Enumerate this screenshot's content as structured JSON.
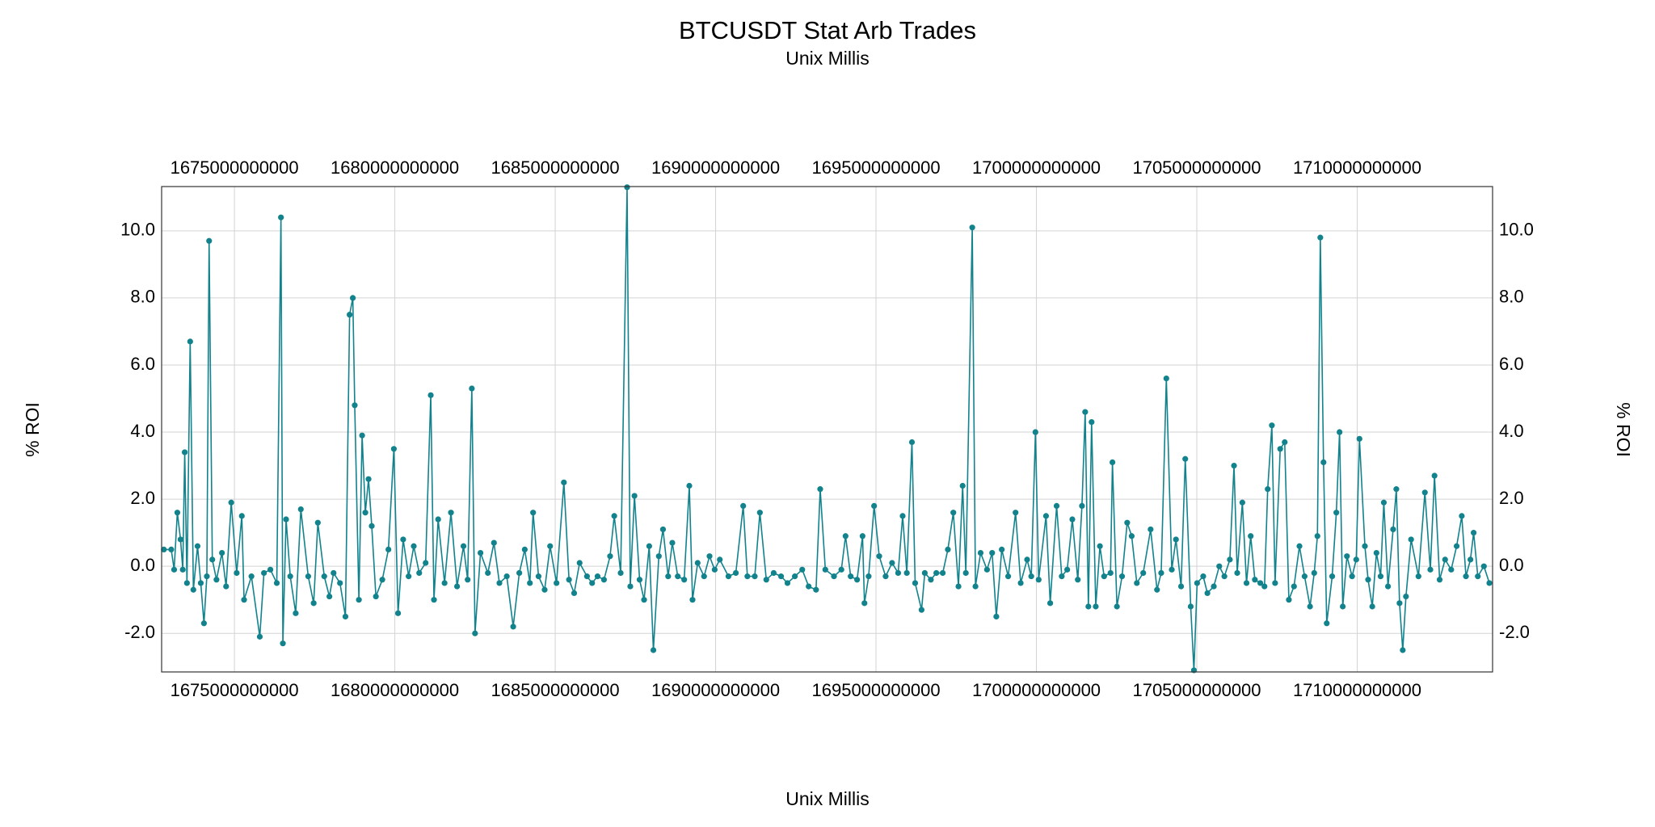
{
  "chart_data": {
    "type": "line",
    "title": "BTCUSDT Stat Arb Trades",
    "subtitle": "Unix Millis",
    "xlabel": "Unix Millis",
    "ylabel": "% ROI",
    "color": "#12838d",
    "markers": true,
    "grid": true,
    "mirror_axes": true,
    "xlim": [
      1672730000000,
      1714220000000
    ],
    "ylim": [
      -3.15,
      11.32
    ],
    "xticks": [
      1675000000000,
      1680000000000,
      1685000000000,
      1690000000000,
      1695000000000,
      1700000000000,
      1705000000000,
      1710000000000
    ],
    "yticks": [
      {
        "value": -2,
        "label": "-2.0"
      },
      {
        "value": 0,
        "label": "0.0"
      },
      {
        "value": 2,
        "label": "2.0"
      },
      {
        "value": 4,
        "label": "4.0"
      },
      {
        "value": 6,
        "label": "6.0"
      },
      {
        "value": 8,
        "label": "8.0"
      },
      {
        "value": 10,
        "label": "10.0"
      }
    ],
    "x": [
      1672800000000,
      1673030000000,
      1673120000000,
      1673220000000,
      1673320000000,
      1673390000000,
      1673450000000,
      1673520000000,
      1673620000000,
      1673720000000,
      1673850000000,
      1673950000000,
      1674050000000,
      1674140000000,
      1674210000000,
      1674310000000,
      1674440000000,
      1674610000000,
      1674740000000,
      1674900000000,
      1675070000000,
      1675230000000,
      1675300000000,
      1675530000000,
      1675790000000,
      1675920000000,
      1676120000000,
      1676320000000,
      1676450000000,
      1676510000000,
      1676610000000,
      1676740000000,
      1676910000000,
      1677070000000,
      1677300000000,
      1677470000000,
      1677600000000,
      1677800000000,
      1677960000000,
      1678090000000,
      1678290000000,
      1678460000000,
      1678590000000,
      1678690000000,
      1678750000000,
      1678880000000,
      1678980000000,
      1679080000000,
      1679180000000,
      1679280000000,
      1679410000000,
      1679610000000,
      1679800000000,
      1679970000000,
      1680100000000,
      1680260000000,
      1680430000000,
      1680590000000,
      1680760000000,
      1680960000000,
      1681120000000,
      1681220000000,
      1681350000000,
      1681550000000,
      1681750000000,
      1681940000000,
      1682140000000,
      1682270000000,
      1682400000000,
      1682500000000,
      1682670000000,
      1682900000000,
      1683090000000,
      1683260000000,
      1683490000000,
      1683690000000,
      1683880000000,
      1684050000000,
      1684210000000,
      1684310000000,
      1684480000000,
      1684670000000,
      1684840000000,
      1685040000000,
      1685270000000,
      1685430000000,
      1685590000000,
      1685760000000,
      1685990000000,
      1686150000000,
      1686320000000,
      1686520000000,
      1686710000000,
      1686840000000,
      1687040000000,
      1687240000000,
      1687340000000,
      1687470000000,
      1687630000000,
      1687770000000,
      1687930000000,
      1688060000000,
      1688230000000,
      1688360000000,
      1688520000000,
      1688650000000,
      1688820000000,
      1689020000000,
      1689180000000,
      1689280000000,
      1689440000000,
      1689640000000,
      1689810000000,
      1689970000000,
      1690130000000,
      1690400000000,
      1690630000000,
      1690860000000,
      1690990000000,
      1691220000000,
      1691380000000,
      1691580000000,
      1691810000000,
      1692040000000,
      1692240000000,
      1692470000000,
      1692700000000,
      1692900000000,
      1693130000000,
      1693260000000,
      1693420000000,
      1693690000000,
      1693920000000,
      1694050000000,
      1694210000000,
      1694410000000,
      1694580000000,
      1694640000000,
      1694770000000,
      1694940000000,
      1695100000000,
      1695300000000,
      1695500000000,
      1695690000000,
      1695830000000,
      1695960000000,
      1696120000000,
      1696220000000,
      1696420000000,
      1696520000000,
      1696710000000,
      1696880000000,
      1697080000000,
      1697240000000,
      1697410000000,
      1697570000000,
      1697700000000,
      1697800000000,
      1698000000000,
      1698100000000,
      1698260000000,
      1698460000000,
      1698620000000,
      1698750000000,
      1698920000000,
      1699120000000,
      1699350000000,
      1699510000000,
      1699710000000,
      1699840000000,
      1699970000000,
      1700070000000,
      1700300000000,
      1700430000000,
      1700630000000,
      1700790000000,
      1700960000000,
      1701120000000,
      1701290000000,
      1701420000000,
      1701520000000,
      1701620000000,
      1701720000000,
      1701850000000,
      1701980000000,
      1702110000000,
      1702310000000,
      1702370000000,
      1702510000000,
      1702670000000,
      1702830000000,
      1702970000000,
      1703130000000,
      1703330000000,
      1703560000000,
      1703760000000,
      1703890000000,
      1704050000000,
      1704220000000,
      1704350000000,
      1704510000000,
      1704640000000,
      1704810000000,
      1704910000000,
      1705010000000,
      1705200000000,
      1705330000000,
      1705530000000,
      1705700000000,
      1705860000000,
      1706030000000,
      1706160000000,
      1706260000000,
      1706420000000,
      1706550000000,
      1706680000000,
      1706810000000,
      1706980000000,
      1707110000000,
      1707210000000,
      1707340000000,
      1707440000000,
      1707600000000,
      1707740000000,
      1707870000000,
      1708030000000,
      1708200000000,
      1708360000000,
      1708530000000,
      1708660000000,
      1708760000000,
      1708850000000,
      1708950000000,
      1709050000000,
      1709220000000,
      1709350000000,
      1709450000000,
      1709550000000,
      1709680000000,
      1709840000000,
      1709970000000,
      1710070000000,
      1710240000000,
      1710340000000,
      1710470000000,
      1710600000000,
      1710730000000,
      1710830000000,
      1710960000000,
      1711120000000,
      1711220000000,
      1711320000000,
      1711420000000,
      1711520000000,
      1711680000000,
      1711910000000,
      1712110000000,
      1712280000000,
      1712410000000,
      1712570000000,
      1712740000000,
      1712930000000,
      1713100000000,
      1713260000000,
      1713390000000,
      1713530000000,
      1713630000000,
      1713760000000,
      1713950000000,
      1714120000000
    ],
    "values": [
      0.5,
      0.5,
      -0.1,
      1.6,
      0.8,
      -0.1,
      3.4,
      -0.5,
      6.7,
      -0.7,
      0.6,
      -0.5,
      -1.7,
      -0.3,
      9.7,
      0.2,
      -0.4,
      0.4,
      -0.6,
      1.9,
      -0.2,
      1.5,
      -1.0,
      -0.3,
      -2.1,
      -0.2,
      -0.1,
      -0.5,
      10.4,
      -2.3,
      1.4,
      -0.3,
      -1.4,
      1.7,
      -0.3,
      -1.1,
      1.3,
      -0.3,
      -0.9,
      -0.2,
      -0.5,
      -1.5,
      7.5,
      8.0,
      4.8,
      -1.0,
      3.9,
      1.6,
      2.6,
      1.2,
      -0.9,
      -0.4,
      0.5,
      3.5,
      -1.4,
      0.8,
      -0.3,
      0.6,
      -0.2,
      0.1,
      5.1,
      -1.0,
      1.4,
      -0.5,
      1.6,
      -0.6,
      0.6,
      -0.4,
      5.3,
      -2.0,
      0.4,
      -0.2,
      0.7,
      -0.5,
      -0.3,
      -1.8,
      -0.2,
      0.5,
      -0.5,
      1.6,
      -0.3,
      -0.7,
      0.6,
      -0.5,
      2.5,
      -0.4,
      -0.8,
      0.1,
      -0.3,
      -0.5,
      -0.3,
      -0.4,
      0.3,
      1.5,
      -0.2,
      11.3,
      -0.6,
      2.1,
      -0.4,
      -1.0,
      0.6,
      -2.5,
      0.3,
      1.1,
      -0.3,
      0.7,
      -0.3,
      -0.4,
      2.4,
      -1.0,
      0.1,
      -0.3,
      0.3,
      -0.1,
      0.2,
      -0.3,
      -0.2,
      1.8,
      -0.3,
      -0.3,
      1.6,
      -0.4,
      -0.2,
      -0.3,
      -0.5,
      -0.3,
      -0.1,
      -0.6,
      -0.7,
      2.3,
      -0.1,
      -0.3,
      -0.1,
      0.9,
      -0.3,
      -0.4,
      0.9,
      -1.1,
      -0.3,
      1.8,
      0.3,
      -0.3,
      0.1,
      -0.2,
      1.5,
      -0.2,
      3.7,
      -0.5,
      -1.3,
      -0.2,
      -0.4,
      -0.2,
      -0.2,
      0.5,
      1.6,
      -0.6,
      2.4,
      -0.2,
      10.1,
      -0.6,
      0.4,
      -0.1,
      0.4,
      -1.5,
      0.5,
      -0.3,
      1.6,
      -0.5,
      0.2,
      -0.3,
      4.0,
      -0.4,
      1.5,
      -1.1,
      1.8,
      -0.3,
      -0.1,
      1.4,
      -0.4,
      1.8,
      4.6,
      -1.2,
      4.3,
      -1.2,
      0.6,
      -0.3,
      -0.2,
      3.1,
      -1.2,
      -0.3,
      1.3,
      0.9,
      -0.5,
      -0.2,
      1.1,
      -0.7,
      -0.2,
      5.6,
      -0.1,
      0.8,
      -0.6,
      3.2,
      -1.2,
      -3.1,
      -0.5,
      -0.3,
      -0.8,
      -0.6,
      0.0,
      -0.3,
      0.2,
      3.0,
      -0.2,
      1.9,
      -0.5,
      0.9,
      -0.4,
      -0.5,
      -0.6,
      2.3,
      4.2,
      -0.5,
      3.5,
      3.7,
      -1.0,
      -0.6,
      0.6,
      -0.3,
      -1.2,
      -0.2,
      0.9,
      9.8,
      3.1,
      -1.7,
      -0.3,
      1.6,
      4.0,
      -1.2,
      0.3,
      -0.3,
      0.2,
      3.8,
      0.6,
      -0.4,
      -1.2,
      0.4,
      -0.3,
      1.9,
      -0.6,
      1.1,
      2.3,
      -1.1,
      -2.5,
      -0.9,
      0.8,
      -0.3,
      2.2,
      -0.1,
      2.7,
      -0.4,
      0.2,
      -0.1,
      0.6,
      1.5,
      -0.3,
      0.2,
      1.0,
      -0.3,
      0.0,
      -0.5
    ]
  }
}
